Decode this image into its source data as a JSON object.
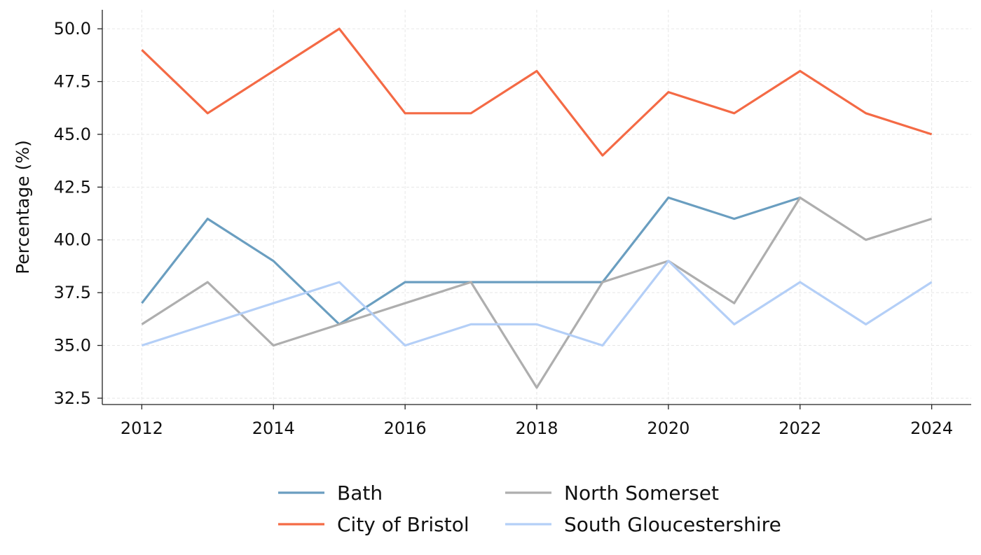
{
  "chart_data": {
    "type": "line",
    "title": "",
    "xlabel": "",
    "ylabel": "Percentage (%)",
    "x": [
      2012,
      2013,
      2014,
      2015,
      2016,
      2017,
      2018,
      2019,
      2020,
      2021,
      2022,
      2023,
      2024
    ],
    "xticks": [
      "2012",
      "2014",
      "2016",
      "2018",
      "2020",
      "2022",
      "2024"
    ],
    "yticks": [
      "32.5",
      "35.0",
      "37.5",
      "40.0",
      "42.5",
      "45.0",
      "47.5",
      "50.0"
    ],
    "xlim": [
      2011.4,
      2024.6
    ],
    "ylim": [
      32.2,
      50.9
    ],
    "grid": true,
    "legend_position": "bottom-center",
    "series": [
      {
        "name": "Bath",
        "color": "#6a9ec0",
        "values": [
          37,
          41,
          39,
          36,
          38,
          38,
          38,
          38,
          42,
          41,
          42,
          null,
          null
        ]
      },
      {
        "name": "City of Bristol",
        "color": "#f46a45",
        "values": [
          49,
          46,
          48,
          50,
          46,
          46,
          48,
          44,
          47,
          46,
          48,
          46,
          45
        ]
      },
      {
        "name": "North Somerset",
        "color": "#aeaeae",
        "values": [
          36,
          38,
          35,
          36,
          37,
          38,
          33,
          38,
          39,
          37,
          42,
          40,
          41
        ]
      },
      {
        "name": "South Gloucestershire",
        "color": "#b4cff7",
        "values": [
          35,
          36,
          37,
          38,
          35,
          36,
          36,
          35,
          39,
          36,
          38,
          36,
          38
        ]
      }
    ]
  }
}
